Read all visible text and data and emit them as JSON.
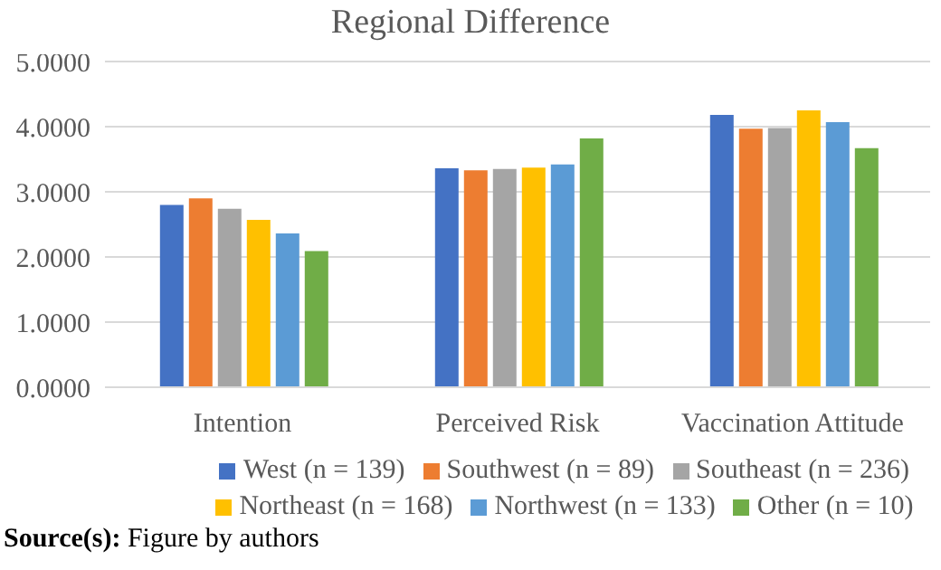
{
  "chart_data": {
    "type": "bar",
    "title": "Regional Difference",
    "categories": [
      "Intention",
      "Perceived Risk",
      "Vaccination Attitude"
    ],
    "series": [
      {
        "name": "West (n = 139)",
        "color": "#4472c4",
        "values": [
          2.8,
          3.36,
          4.18
        ]
      },
      {
        "name": "Southwest (n = 89)",
        "color": "#ed7d31",
        "values": [
          2.9,
          3.33,
          3.97
        ]
      },
      {
        "name": "Southeast (n = 236)",
        "color": "#a5a5a5",
        "values": [
          2.74,
          3.35,
          3.98
        ]
      },
      {
        "name": "Northeast (n = 168)",
        "color": "#ffc000",
        "values": [
          2.57,
          3.37,
          4.25
        ]
      },
      {
        "name": "Northwest (n = 133)",
        "color": "#5b9bd5",
        "values": [
          2.36,
          3.42,
          4.07
        ]
      },
      {
        "name": "Other (n = 10)",
        "color": "#70ad47",
        "values": [
          2.09,
          3.82,
          3.67
        ]
      }
    ],
    "ylim": [
      0,
      5
    ],
    "yticks": [
      {
        "value": 0,
        "label": "0.0000"
      },
      {
        "value": 1,
        "label": "1.0000"
      },
      {
        "value": 2,
        "label": "2.0000"
      },
      {
        "value": 3,
        "label": "3.0000"
      },
      {
        "value": 4,
        "label": "4.0000"
      },
      {
        "value": 5,
        "label": "5.0000"
      }
    ],
    "grid": "y",
    "legend": "bottom",
    "annotations": [
      "Source(s): Figure by authors"
    ]
  }
}
